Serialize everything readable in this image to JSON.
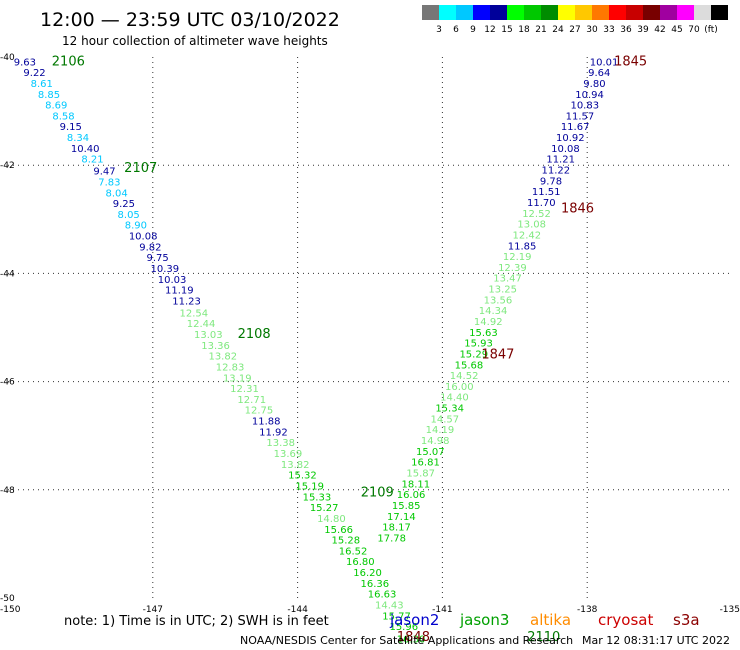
{
  "header": {
    "title": "12:00 — 23:59 UTC 03/10/2022",
    "subtitle": "12 hour collection of altimeter wave heights"
  },
  "color_scale": {
    "colors": [
      "#777777",
      "#00ffff",
      "#00c8ff",
      "#0000ff",
      "#00009a",
      "#00ff00",
      "#00c800",
      "#008c00",
      "#ffff00",
      "#ffc800",
      "#ff7800",
      "#ff0000",
      "#c80000",
      "#780000",
      "#a000a0",
      "#ff00ff",
      "#dcdcdc",
      "#000000"
    ],
    "labels": [
      "3",
      "6",
      "9",
      "12",
      "15",
      "18",
      "21",
      "24",
      "27",
      "30",
      "33",
      "36",
      "39",
      "42",
      "45",
      "70",
      "(ft)"
    ]
  },
  "footer": {
    "note": "note:  1) Time is in UTC;  2) SWH is in feet",
    "credit": "NOAA/NESDIS Center for Satellite Applications and Research",
    "timestamp": "Mar 12 08:31:17 UTC 2022"
  },
  "missions": [
    {
      "name": "jason2",
      "color": "#0000cc"
    },
    {
      "name": "jason3",
      "color": "#00a000"
    },
    {
      "name": "altika",
      "color": "#ff8c00"
    },
    {
      "name": "cryosat",
      "color": "#cc0000"
    },
    {
      "name": "s3a",
      "color": "#8b0000"
    }
  ],
  "chart_data": {
    "type": "scatter",
    "title": "12:00 — 23:59 UTC 03/10/2022",
    "subtitle": "12 hour collection of altimeter wave heights",
    "xlim": [
      -150,
      -135
    ],
    "ylim": [
      -50,
      -40
    ],
    "x_ticks": [
      -150,
      -147,
      -144,
      -141,
      -138,
      -135
    ],
    "y_ticks": [
      -40,
      -42,
      -44,
      -46,
      -48,
      -50
    ],
    "x_tick_labels": [
      "-150",
      "-147",
      "-144",
      "-141",
      "-138",
      "-135"
    ],
    "y_tick_labels": [
      "-40",
      "-42",
      "-44",
      "-46",
      "-48",
      "-50"
    ],
    "grid": true,
    "units": "ft",
    "series": [
      {
        "name": "jason3",
        "points": [
          {
            "lon": -149.65,
            "lat": -40.08,
            "swh": "9.63",
            "color": "#00009a"
          },
          {
            "lon": -149.45,
            "lat": -40.28,
            "swh": "9.22",
            "color": "#00009a"
          },
          {
            "lon": -149.3,
            "lat": -40.48,
            "swh": "8.61",
            "color": "#00c8ff"
          },
          {
            "lon": -149.15,
            "lat": -40.68,
            "swh": "8.85",
            "color": "#00c8ff"
          },
          {
            "lon": -149.0,
            "lat": -40.88,
            "swh": "8.69",
            "color": "#00c8ff"
          },
          {
            "lon": -148.85,
            "lat": -41.08,
            "swh": "8.58",
            "color": "#00c8ff"
          },
          {
            "lon": -148.7,
            "lat": -41.28,
            "swh": "9.15",
            "color": "#00009a"
          },
          {
            "lon": -148.55,
            "lat": -41.48,
            "swh": "8.34",
            "color": "#00c8ff"
          },
          {
            "lon": -148.4,
            "lat": -41.68,
            "swh": "10.40",
            "color": "#00009a"
          },
          {
            "lon": -148.25,
            "lat": -41.88,
            "swh": "8.21",
            "color": "#00c8ff"
          },
          {
            "lon": -148.0,
            "lat": -42.1,
            "swh": "9.47",
            "color": "#00009a"
          },
          {
            "lon": -147.9,
            "lat": -42.3,
            "swh": "7.83",
            "color": "#00c8ff"
          },
          {
            "lon": -147.75,
            "lat": -42.5,
            "swh": "8.04",
            "color": "#00c8ff"
          },
          {
            "lon": -147.6,
            "lat": -42.7,
            "swh": "9.25",
            "color": "#00009a"
          },
          {
            "lon": -147.5,
            "lat": -42.9,
            "swh": "8.05",
            "color": "#00c8ff"
          },
          {
            "lon": -147.35,
            "lat": -43.1,
            "swh": "8.90",
            "color": "#00c8ff"
          },
          {
            "lon": -147.2,
            "lat": -43.3,
            "swh": "10.08",
            "color": "#00009a"
          },
          {
            "lon": -147.05,
            "lat": -43.5,
            "swh": "9.82",
            "color": "#00009a"
          },
          {
            "lon": -146.9,
            "lat": -43.7,
            "swh": "9.75",
            "color": "#00009a"
          },
          {
            "lon": -146.75,
            "lat": -43.9,
            "swh": "10.39",
            "color": "#00009a"
          },
          {
            "lon": -146.6,
            "lat": -44.1,
            "swh": "10.03",
            "color": "#00009a"
          },
          {
            "lon": -146.45,
            "lat": -44.3,
            "swh": "11.19",
            "color": "#00009a"
          },
          {
            "lon": -146.3,
            "lat": -44.5,
            "swh": "11.23",
            "color": "#00009a"
          },
          {
            "lon": -146.15,
            "lat": -44.72,
            "swh": "12.54",
            "color": "#7ee87e"
          },
          {
            "lon": -146.0,
            "lat": -44.92,
            "swh": "12.44",
            "color": "#7ee87e"
          },
          {
            "lon": -145.85,
            "lat": -45.12,
            "swh": "13.03",
            "color": "#7ee87e"
          },
          {
            "lon": -145.7,
            "lat": -45.32,
            "swh": "13.36",
            "color": "#7ee87e"
          },
          {
            "lon": -145.55,
            "lat": -45.52,
            "swh": "13.82",
            "color": "#7ee87e"
          },
          {
            "lon": -145.4,
            "lat": -45.72,
            "swh": "12.83",
            "color": "#7ee87e"
          },
          {
            "lon": -145.25,
            "lat": -45.92,
            "swh": "13.19",
            "color": "#7ee87e"
          },
          {
            "lon": -145.1,
            "lat": -46.12,
            "swh": "12.31",
            "color": "#7ee87e"
          },
          {
            "lon": -144.95,
            "lat": -46.32,
            "swh": "12.71",
            "color": "#7ee87e"
          },
          {
            "lon": -144.8,
            "lat": -46.52,
            "swh": "12.75",
            "color": "#7ee87e"
          },
          {
            "lon": -144.65,
            "lat": -46.72,
            "swh": "11.88",
            "color": "#00009a"
          },
          {
            "lon": -144.5,
            "lat": -46.92,
            "swh": "11.92",
            "color": "#00009a"
          },
          {
            "lon": -144.35,
            "lat": -47.12,
            "swh": "13.38",
            "color": "#7ee87e"
          },
          {
            "lon": -144.2,
            "lat": -47.32,
            "swh": "13.69",
            "color": "#7ee87e"
          },
          {
            "lon": -144.05,
            "lat": -47.52,
            "swh": "13.82",
            "color": "#7ee87e"
          },
          {
            "lon": -143.9,
            "lat": -47.72,
            "swh": "15.32",
            "color": "#00c800"
          },
          {
            "lon": -143.75,
            "lat": -47.92,
            "swh": "15.19",
            "color": "#00c800"
          },
          {
            "lon": -143.6,
            "lat": -48.12,
            "swh": "15.33",
            "color": "#00c800"
          },
          {
            "lon": -143.45,
            "lat": -48.32,
            "swh": "15.27",
            "color": "#00c800"
          },
          {
            "lon": -143.3,
            "lat": -48.52,
            "swh": "14.80",
            "color": "#7ee87e"
          },
          {
            "lon": -143.15,
            "lat": -48.72,
            "swh": "15.66",
            "color": "#00c800"
          },
          {
            "lon": -143.0,
            "lat": -48.92,
            "swh": "15.28",
            "color": "#00c800"
          },
          {
            "lon": -142.85,
            "lat": -49.12,
            "swh": "16.52",
            "color": "#00c800"
          },
          {
            "lon": -142.7,
            "lat": -49.32,
            "swh": "16.80",
            "color": "#00c800"
          },
          {
            "lon": -142.55,
            "lat": -49.52,
            "swh": "16.20",
            "color": "#00c800"
          },
          {
            "lon": -142.4,
            "lat": -49.72,
            "swh": "16.36",
            "color": "#00c800"
          },
          {
            "lon": -142.25,
            "lat": -49.92,
            "swh": "16.63",
            "color": "#00c800"
          },
          {
            "lon": -142.1,
            "lat": -50.12,
            "swh": "14.43",
            "color": "#7ee87e"
          },
          {
            "lon": -141.95,
            "lat": -50.32,
            "swh": "15.77",
            "color": "#00c800"
          },
          {
            "lon": -141.8,
            "lat": -50.52,
            "swh": "15.96",
            "color": "#00c800"
          },
          {
            "lon": -141.65,
            "lat": -50.75,
            "swh": "16.30",
            "color": "#00c800"
          }
        ],
        "time_labels": [
          {
            "lon": -148.75,
            "lat": -40.08,
            "text": "2106"
          },
          {
            "lon": -147.25,
            "lat": -42.05,
            "text": "2107"
          },
          {
            "lon": -144.9,
            "lat": -45.12,
            "text": "2108"
          },
          {
            "lon": -142.35,
            "lat": -48.05,
            "text": "2109"
          },
          {
            "lon": -138.9,
            "lat": -50.72,
            "text": "2110"
          }
        ]
      },
      {
        "name": "s3a",
        "points": [
          {
            "lon": -137.65,
            "lat": -40.08,
            "swh": "10.01",
            "color": "#00009a"
          },
          {
            "lon": -137.75,
            "lat": -40.28,
            "swh": "9.64",
            "color": "#00009a"
          },
          {
            "lon": -137.85,
            "lat": -40.48,
            "swh": "9.80",
            "color": "#00009a"
          },
          {
            "lon": -137.95,
            "lat": -40.68,
            "swh": "10.94",
            "color": "#00009a"
          },
          {
            "lon": -138.05,
            "lat": -40.88,
            "swh": "10.83",
            "color": "#00009a"
          },
          {
            "lon": -138.15,
            "lat": -41.08,
            "swh": "11.57",
            "color": "#00009a"
          },
          {
            "lon": -138.25,
            "lat": -41.28,
            "swh": "11.67",
            "color": "#00009a"
          },
          {
            "lon": -138.35,
            "lat": -41.48,
            "swh": "10.92",
            "color": "#00009a"
          },
          {
            "lon": -138.45,
            "lat": -41.68,
            "swh": "10.08",
            "color": "#00009a"
          },
          {
            "lon": -138.55,
            "lat": -41.88,
            "swh": "11.21",
            "color": "#00009a"
          },
          {
            "lon": -138.65,
            "lat": -42.08,
            "swh": "11.22",
            "color": "#00009a"
          },
          {
            "lon": -138.75,
            "lat": -42.28,
            "swh": "9.78",
            "color": "#00009a"
          },
          {
            "lon": -138.85,
            "lat": -42.48,
            "swh": "11.51",
            "color": "#00009a"
          },
          {
            "lon": -138.95,
            "lat": -42.68,
            "swh": "11.70",
            "color": "#00009a"
          },
          {
            "lon": -139.05,
            "lat": -42.88,
            "swh": "12.52",
            "color": "#7ee87e"
          },
          {
            "lon": -139.15,
            "lat": -43.08,
            "swh": "13.08",
            "color": "#7ee87e"
          },
          {
            "lon": -139.25,
            "lat": -43.28,
            "swh": "12.42",
            "color": "#7ee87e"
          },
          {
            "lon": -139.35,
            "lat": -43.48,
            "swh": "11.85",
            "color": "#00009a"
          },
          {
            "lon": -139.45,
            "lat": -43.68,
            "swh": "12.19",
            "color": "#7ee87e"
          },
          {
            "lon": -139.55,
            "lat": -43.88,
            "swh": "12.39",
            "color": "#7ee87e"
          },
          {
            "lon": -139.65,
            "lat": -44.08,
            "swh": "13.47",
            "color": "#7ee87e"
          },
          {
            "lon": -139.75,
            "lat": -44.28,
            "swh": "13.25",
            "color": "#7ee87e"
          },
          {
            "lon": -139.85,
            "lat": -44.48,
            "swh": "13.56",
            "color": "#7ee87e"
          },
          {
            "lon": -139.95,
            "lat": -44.68,
            "swh": "14.34",
            "color": "#7ee87e"
          },
          {
            "lon": -140.05,
            "lat": -44.88,
            "swh": "14.92",
            "color": "#7ee87e"
          },
          {
            "lon": -140.15,
            "lat": -45.08,
            "swh": "15.63",
            "color": "#00c800"
          },
          {
            "lon": -140.25,
            "lat": -45.28,
            "swh": "15.93",
            "color": "#00c800"
          },
          {
            "lon": -140.35,
            "lat": -45.48,
            "swh": "15.29",
            "color": "#00c800"
          },
          {
            "lon": -140.45,
            "lat": -45.68,
            "swh": "15.68",
            "color": "#00c800"
          },
          {
            "lon": -140.55,
            "lat": -45.88,
            "swh": "14.52",
            "color": "#7ee87e"
          },
          {
            "lon": -140.65,
            "lat": -46.08,
            "swh": "16.00",
            "color": "#7ee87e"
          },
          {
            "lon": -140.75,
            "lat": -46.28,
            "swh": "14.40",
            "color": "#7ee87e"
          },
          {
            "lon": -140.85,
            "lat": -46.48,
            "swh": "15.34",
            "color": "#00c800"
          },
          {
            "lon": -140.95,
            "lat": -46.68,
            "swh": "14.57",
            "color": "#7ee87e"
          },
          {
            "lon": -141.05,
            "lat": -46.88,
            "swh": "14.19",
            "color": "#7ee87e"
          },
          {
            "lon": -141.15,
            "lat": -47.08,
            "swh": "14.98",
            "color": "#7ee87e"
          },
          {
            "lon": -141.25,
            "lat": -47.28,
            "swh": "15.07",
            "color": "#00c800"
          },
          {
            "lon": -141.35,
            "lat": -47.48,
            "swh": "16.81",
            "color": "#00c800"
          },
          {
            "lon": -141.45,
            "lat": -47.68,
            "swh": "15.87",
            "color": "#7ee87e"
          },
          {
            "lon": -141.55,
            "lat": -47.88,
            "swh": "18.11",
            "color": "#00c800"
          },
          {
            "lon": -141.65,
            "lat": -48.08,
            "swh": "16.06",
            "color": "#00c800"
          },
          {
            "lon": -141.75,
            "lat": -48.28,
            "swh": "15.85",
            "color": "#00c800"
          },
          {
            "lon": -141.85,
            "lat": -48.48,
            "swh": "17.14",
            "color": "#00c800"
          },
          {
            "lon": -141.95,
            "lat": -48.68,
            "swh": "18.17",
            "color": "#00c800"
          },
          {
            "lon": -142.05,
            "lat": -48.88,
            "swh": "17.78",
            "color": "#00c800"
          }
        ],
        "time_labels": [
          {
            "lon": -137.1,
            "lat": -40.08,
            "text": "1845"
          },
          {
            "lon": -138.2,
            "lat": -42.8,
            "text": "1846"
          },
          {
            "lon": -139.85,
            "lat": -45.5,
            "text": "1847"
          },
          {
            "lon": -141.6,
            "lat": -50.72,
            "text": "1848"
          }
        ]
      }
    ]
  }
}
